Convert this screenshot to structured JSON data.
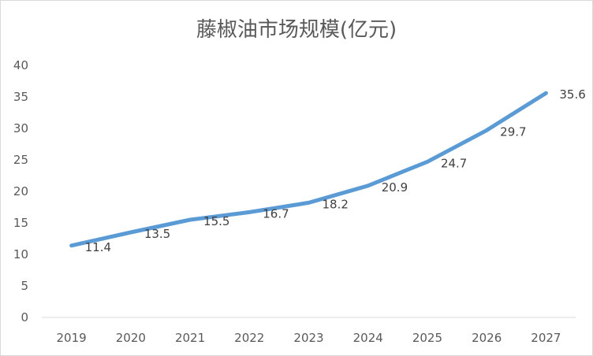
{
  "chart_data": {
    "type": "line",
    "title": "藤椒油市场规模(亿元)",
    "xlabel": "",
    "ylabel": "",
    "categories": [
      "2019",
      "2020",
      "2021",
      "2022",
      "2023",
      "2024",
      "2025",
      "2026",
      "2027"
    ],
    "series": [
      {
        "values": [
          11.4,
          13.5,
          15.5,
          16.7,
          18.2,
          20.9,
          24.7,
          29.7,
          35.6
        ]
      }
    ],
    "data_labels": [
      "11.4",
      "13.5",
      "15.5",
      "16.7",
      "18.2",
      "20.9",
      "24.7",
      "29.7",
      "35.6"
    ],
    "ylim": [
      0,
      40
    ],
    "yticks": [
      "0",
      "5",
      "10",
      "15",
      "20",
      "25",
      "30",
      "35",
      "40"
    ],
    "grid": false,
    "legend": "none",
    "line_color": "#5b9bd5"
  }
}
